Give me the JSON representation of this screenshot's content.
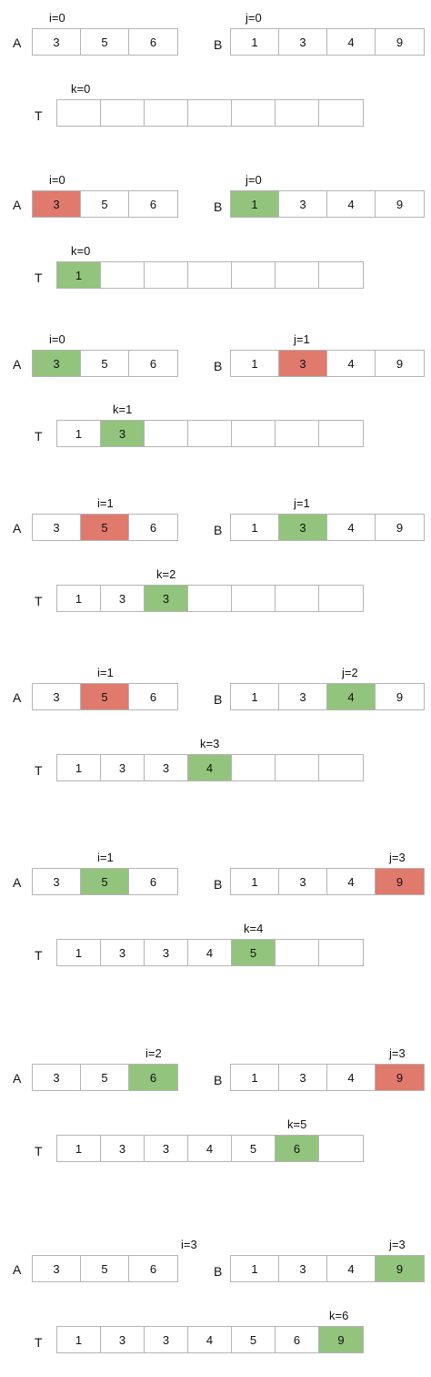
{
  "colors": {
    "red": "#e07a6d",
    "green": "#93c47d",
    "border": "#b4b4b4"
  },
  "steps": [
    {
      "A": {
        "cells": [
          "3",
          "5",
          "6"
        ],
        "hl": [
          null,
          null,
          null
        ]
      },
      "B": {
        "cells": [
          "1",
          "3",
          "4",
          "9"
        ],
        "hl": [
          null,
          null,
          null,
          null
        ]
      },
      "T": {
        "cells": [
          "",
          "",
          "",
          "",
          "",
          "",
          ""
        ],
        "hl": [
          null,
          null,
          null,
          null,
          null,
          null,
          null
        ]
      },
      "i": "i=0",
      "j": "j=0",
      "k": "k=0"
    },
    {
      "A": {
        "cells": [
          "3",
          "5",
          "6"
        ],
        "hl": [
          "red",
          null,
          null
        ]
      },
      "B": {
        "cells": [
          "1",
          "3",
          "4",
          "9"
        ],
        "hl": [
          "green",
          null,
          null,
          null
        ]
      },
      "T": {
        "cells": [
          "1",
          "",
          "",
          "",
          "",
          "",
          ""
        ],
        "hl": [
          "green",
          null,
          null,
          null,
          null,
          null,
          null
        ]
      },
      "i": "i=0",
      "j": "j=0",
      "k": "k=0"
    },
    {
      "A": {
        "cells": [
          "3",
          "5",
          "6"
        ],
        "hl": [
          "green",
          null,
          null
        ]
      },
      "B": {
        "cells": [
          "1",
          "3",
          "4",
          "9"
        ],
        "hl": [
          null,
          "red",
          null,
          null
        ]
      },
      "T": {
        "cells": [
          "1",
          "3",
          "",
          "",
          "",
          "",
          ""
        ],
        "hl": [
          null,
          "green",
          null,
          null,
          null,
          null,
          null
        ]
      },
      "i": "i=0",
      "j": "j=1",
      "k": "k=1"
    },
    {
      "A": {
        "cells": [
          "3",
          "5",
          "6"
        ],
        "hl": [
          null,
          "red",
          null
        ]
      },
      "B": {
        "cells": [
          "1",
          "3",
          "4",
          "9"
        ],
        "hl": [
          null,
          "green",
          null,
          null
        ]
      },
      "T": {
        "cells": [
          "1",
          "3",
          "3",
          "",
          "",
          "",
          ""
        ],
        "hl": [
          null,
          null,
          "green",
          null,
          null,
          null,
          null
        ]
      },
      "i": "i=1",
      "j": "j=1",
      "k": "k=2"
    },
    {
      "A": {
        "cells": [
          "3",
          "5",
          "6"
        ],
        "hl": [
          null,
          "red",
          null
        ]
      },
      "B": {
        "cells": [
          "1",
          "3",
          "4",
          "9"
        ],
        "hl": [
          null,
          null,
          "green",
          null
        ]
      },
      "T": {
        "cells": [
          "1",
          "3",
          "3",
          "4",
          "",
          "",
          ""
        ],
        "hl": [
          null,
          null,
          null,
          "green",
          null,
          null,
          null
        ]
      },
      "i": "i=1",
      "j": "j=2",
      "k": "k=3"
    },
    {
      "A": {
        "cells": [
          "3",
          "5",
          "6"
        ],
        "hl": [
          null,
          "green",
          null
        ]
      },
      "B": {
        "cells": [
          "1",
          "3",
          "4",
          "9"
        ],
        "hl": [
          null,
          null,
          null,
          "red"
        ]
      },
      "T": {
        "cells": [
          "1",
          "3",
          "3",
          "4",
          "5",
          "",
          ""
        ],
        "hl": [
          null,
          null,
          null,
          null,
          "green",
          null,
          null
        ]
      },
      "i": "i=1",
      "j": "j=3",
      "k": "k=4"
    },
    {
      "A": {
        "cells": [
          "3",
          "5",
          "6"
        ],
        "hl": [
          null,
          null,
          "green"
        ]
      },
      "B": {
        "cells": [
          "1",
          "3",
          "4",
          "9"
        ],
        "hl": [
          null,
          null,
          null,
          "red"
        ]
      },
      "T": {
        "cells": [
          "1",
          "3",
          "3",
          "4",
          "5",
          "6",
          ""
        ],
        "hl": [
          null,
          null,
          null,
          null,
          null,
          "green",
          null
        ]
      },
      "i": "i=2",
      "j": "j=3",
      "k": "k=5"
    },
    {
      "A": {
        "cells": [
          "3",
          "5",
          "6"
        ],
        "hl": [
          null,
          null,
          null
        ]
      },
      "B": {
        "cells": [
          "1",
          "3",
          "4",
          "9"
        ],
        "hl": [
          null,
          null,
          null,
          "green"
        ]
      },
      "T": {
        "cells": [
          "1",
          "3",
          "3",
          "4",
          "5",
          "6",
          "9"
        ],
        "hl": [
          null,
          null,
          null,
          null,
          null,
          null,
          "green"
        ]
      },
      "i": "i=3",
      "j": "j=3",
      "k": "k=6"
    }
  ],
  "labels": {
    "A": "A",
    "B": "B",
    "T": "T"
  }
}
